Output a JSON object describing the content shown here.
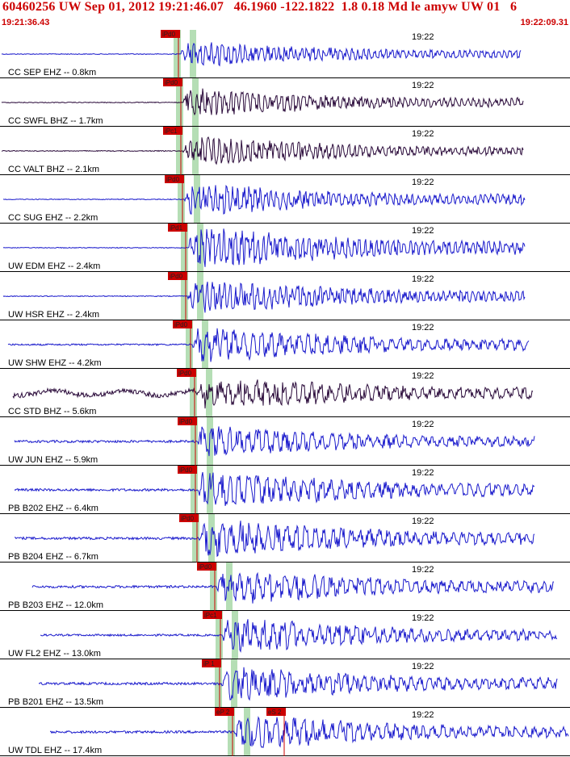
{
  "header": {
    "title": "60460256 UW Sep 01, 2012 19:21:46.07   46.1960 -122.1822  1.8 0.18 Md le amyw UW 01   6",
    "start_time": "19:21:36.43",
    "end_time": "19:22:09.31"
  },
  "minute_label": "19:22",
  "colors": {
    "title": "#cc0000",
    "pick": "#cc0000",
    "short_period": "#1a1acc",
    "broadband": "#2a0a3a",
    "window": "#b5deb5"
  },
  "traces": [
    {
      "label": "CC SEP EHZ -- 0.8km",
      "pick": "iPd0",
      "color": "#1a1acc",
      "amp": 14,
      "noise": 0.5
    },
    {
      "label": "CC SWFL BHZ -- 1.7km",
      "pick": "iPd0",
      "color": "#2a0a3a",
      "amp": 16,
      "noise": 0.5
    },
    {
      "label": "CC VALT BHZ -- 2.1km",
      "pick": "iPc1",
      "color": "#2a0a3a",
      "amp": 16,
      "noise": 0.5
    },
    {
      "label": "CC SUG EHZ -- 2.2km",
      "pick": "iPd0",
      "color": "#1a1acc",
      "amp": 18,
      "noise": 0.5
    },
    {
      "label": "UW EDM EHZ -- 2.4km",
      "pick": "iPd1",
      "color": "#1a1acc",
      "amp": 24,
      "noise": 0.5
    },
    {
      "label": "UW HSR EHZ -- 2.4km",
      "pick": "iPd0",
      "color": "#1a1acc",
      "amp": 20,
      "noise": 0.5
    },
    {
      "label": "UW SHW EHZ -- 4.2km",
      "pick": "iPd0",
      "color": "#1a1acc",
      "amp": 20,
      "noise": 1.0
    },
    {
      "label": "CC STD BHZ -- 5.6km",
      "pick": "iPd0",
      "color": "#2a0a3a",
      "amp": 20,
      "noise": 3.0
    },
    {
      "label": "UW JUN EHZ -- 5.9km",
      "pick": "iPd0",
      "color": "#1a1acc",
      "amp": 18,
      "noise": 1.5
    },
    {
      "label": "PB B202 EHZ -- 6.4km",
      "pick": "iPd0",
      "color": "#1a1acc",
      "amp": 22,
      "noise": 1.5
    },
    {
      "label": "PB B204 EHZ -- 6.7km",
      "pick": "iPd0",
      "color": "#1a1acc",
      "amp": 22,
      "noise": 1.5
    },
    {
      "label": "PB B203 EHZ -- 12.0km",
      "pick": "iPd0",
      "color": "#1a1acc",
      "amp": 20,
      "noise": 1.5
    },
    {
      "label": "UW FL2 EHZ -- 13.0km",
      "pick": "iPc1",
      "color": "#1a1acc",
      "amp": 20,
      "noise": 1.2
    },
    {
      "label": "PB B201 EHZ -- 13.5km",
      "pick": "iP 1",
      "color": "#1a1acc",
      "amp": 20,
      "noise": 1.5
    },
    {
      "label": "UW TDL EHZ -- 17.4km",
      "pick": "eP 2",
      "color": "#1a1acc",
      "amp": 20,
      "noise": 1.5,
      "s_pick": "eS 2"
    }
  ]
}
